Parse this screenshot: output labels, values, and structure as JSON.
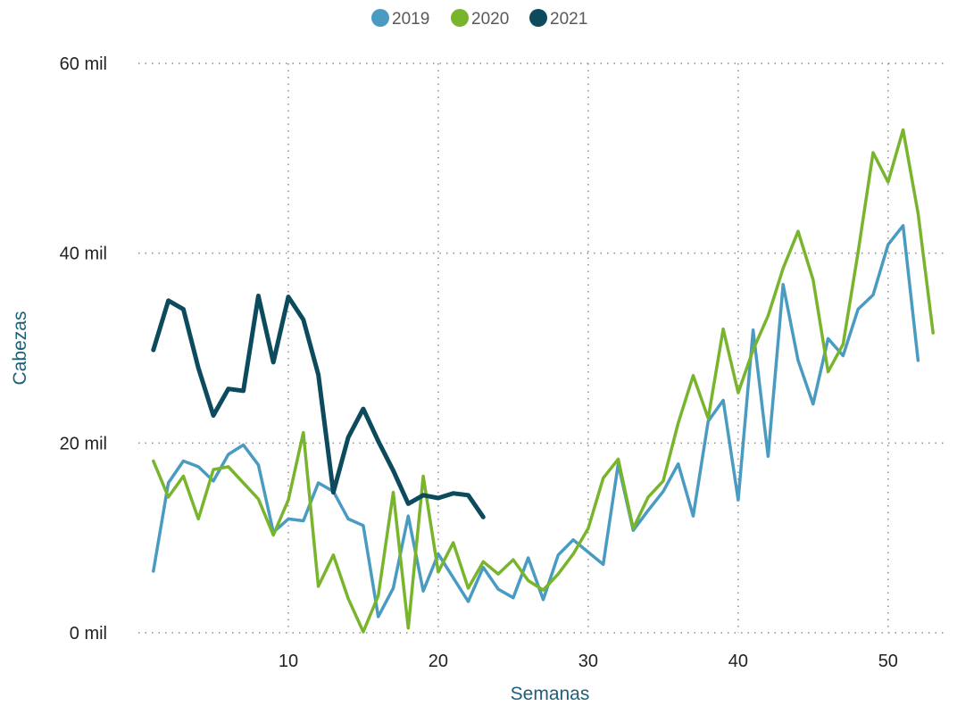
{
  "chart_data": {
    "type": "line",
    "xlabel": "Semanas",
    "ylabel": "Cabezas",
    "xlim": [
      0,
      54
    ],
    "ylim": [
      0,
      60000
    ],
    "x_ticks": [
      10,
      20,
      30,
      40,
      50
    ],
    "y_ticks": [
      {
        "value": 0,
        "label": "0 mil"
      },
      {
        "value": 20000,
        "label": "20 mil"
      },
      {
        "value": 40000,
        "label": "40 mil"
      },
      {
        "value": 60000,
        "label": "60 mil"
      }
    ],
    "grid": "dotted, both axes",
    "legend": "top-center",
    "series": [
      {
        "name": "2019",
        "color": "#4a9bc1",
        "x": [
          1,
          2,
          3,
          4,
          5,
          6,
          7,
          8,
          9,
          10,
          11,
          12,
          13,
          14,
          15,
          16,
          17,
          18,
          19,
          20,
          21,
          22,
          23,
          24,
          25,
          26,
          27,
          28,
          29,
          30,
          31,
          32,
          33,
          34,
          35,
          36,
          37,
          38,
          39,
          40,
          41,
          42,
          43,
          44,
          45,
          46,
          47,
          48,
          49,
          50,
          51,
          52
        ],
        "values": [
          6500,
          15800,
          18100,
          17500,
          16000,
          18800,
          19800,
          17700,
          10600,
          12000,
          11800,
          15800,
          14900,
          12000,
          11300,
          1700,
          4700,
          12300,
          4400,
          8300,
          5800,
          3300,
          6900,
          4600,
          3700,
          7900,
          3500,
          8200,
          9800,
          8500,
          7200,
          17800,
          10800,
          12900,
          14900,
          17800,
          12300,
          22300,
          24500,
          14000,
          31900,
          18600,
          36700,
          28700,
          24100,
          31000,
          29200,
          34100,
          35600,
          40900,
          42900,
          28700
        ]
      },
      {
        "name": "2020",
        "color": "#79b52c",
        "x": [
          1,
          2,
          3,
          4,
          5,
          6,
          7,
          8,
          9,
          10,
          11,
          12,
          13,
          14,
          15,
          16,
          17,
          18,
          19,
          20,
          21,
          22,
          23,
          24,
          25,
          26,
          27,
          28,
          29,
          30,
          31,
          32,
          33,
          34,
          35,
          36,
          37,
          38,
          39,
          40,
          41,
          42,
          43,
          44,
          45,
          46,
          47,
          48,
          49,
          50,
          51,
          52,
          53
        ],
        "values": [
          18100,
          14300,
          16500,
          12000,
          17200,
          17500,
          15800,
          14100,
          10300,
          14000,
          21100,
          4900,
          8200,
          3600,
          100,
          3900,
          14800,
          500,
          16500,
          6400,
          9500,
          4700,
          7500,
          6200,
          7700,
          5500,
          4500,
          6200,
          8300,
          11000,
          16300,
          18300,
          11000,
          14300,
          16000,
          22100,
          27100,
          22600,
          32000,
          25300,
          29800,
          33400,
          38400,
          42300,
          37200,
          27500,
          30400,
          40100,
          50600,
          47500,
          53000,
          44200,
          31600
        ]
      },
      {
        "name": "2021",
        "color": "#0c4a5e",
        "x": [
          1,
          2,
          3,
          4,
          5,
          6,
          7,
          8,
          9,
          10,
          11,
          12,
          13,
          14,
          15,
          16,
          17,
          18,
          19,
          20,
          21,
          22,
          23
        ],
        "values": [
          29800,
          35000,
          34100,
          27900,
          22900,
          25700,
          25500,
          35500,
          28500,
          35400,
          33000,
          27200,
          14800,
          20600,
          23600,
          20200,
          17100,
          13600,
          14500,
          14200,
          14700,
          14500,
          12200
        ]
      }
    ]
  }
}
